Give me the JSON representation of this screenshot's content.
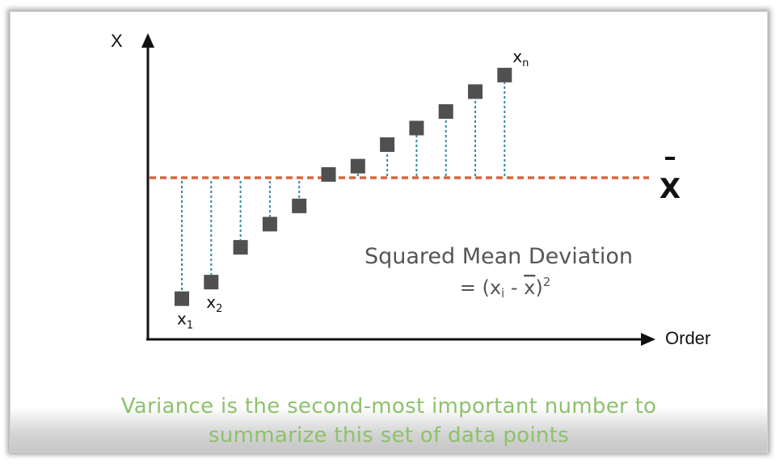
{
  "chart_data": {
    "type": "scatter",
    "ylabel": "X",
    "xlabel": "Order",
    "mean_label": "X",
    "mean_value": 0.0,
    "points": [
      {
        "order": 1,
        "value": -7.3
      },
      {
        "order": 2,
        "value": -6.3
      },
      {
        "order": 3,
        "value": -4.2
      },
      {
        "order": 4,
        "value": -2.8
      },
      {
        "order": 5,
        "value": -1.7
      },
      {
        "order": 6,
        "value": 0.2
      },
      {
        "order": 7,
        "value": 0.7
      },
      {
        "order": 8,
        "value": 2.0
      },
      {
        "order": 9,
        "value": 3.0
      },
      {
        "order": 10,
        "value": 4.0
      },
      {
        "order": 11,
        "value": 5.2
      },
      {
        "order": 12,
        "value": 6.2
      }
    ],
    "point_labels": [
      {
        "order": 1,
        "text": "x",
        "sub": "1"
      },
      {
        "order": 2,
        "text": "x",
        "sub": "2"
      },
      {
        "order": 12,
        "text": "x",
        "sub": "n"
      }
    ],
    "annotation": {
      "line1": "Squared Mean Deviation",
      "eq": "= (x",
      "sub": "i",
      "mid": " - ",
      "xbar": "x",
      "close": ")",
      "sup": "2"
    },
    "colors": {
      "point": "#505050",
      "mean_line": "#d9663d",
      "deviation": "#2f8a9e",
      "axis": "#111111",
      "annotation": "#555555"
    }
  },
  "caption": {
    "line1": "Variance is the second-most important number to",
    "line2": "summarize this set of data points"
  }
}
